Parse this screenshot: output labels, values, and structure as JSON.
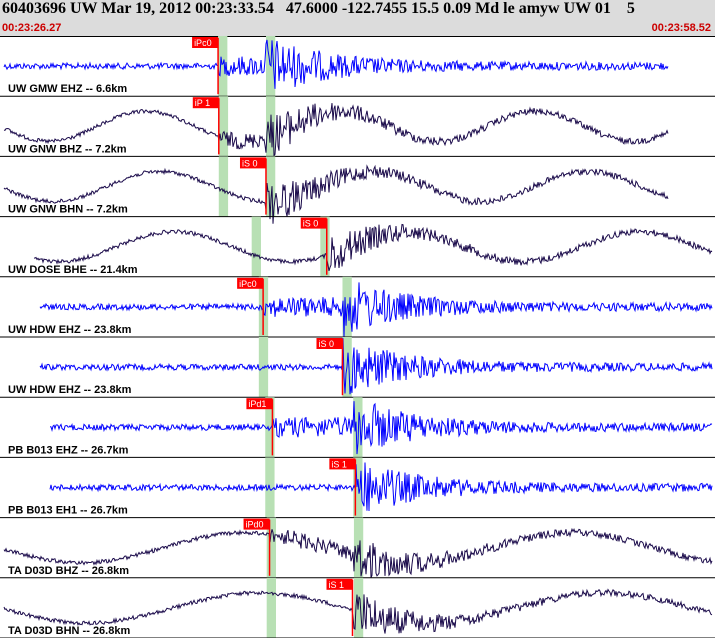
{
  "header": {
    "event_line": "60403696 UW Mar 19, 2012 00:23:33.54   47.6000 -122.7455 15.5 0.09 Md le amyw UW 01    5",
    "start_time": "00:23:26.27",
    "end_time": "00:23:58.52"
  },
  "colors": {
    "header_bg": "#dcdcdc",
    "trace_vertical": "#0000ff",
    "trace_horizontal": "#1a0a4a",
    "pick_flag": "#ff0000",
    "time_window": "#b8e0b4"
  },
  "chart_data": {
    "type": "line",
    "x_range": [
      "00:23:26.27",
      "00:23:58.52"
    ],
    "grid": false,
    "channels": [
      {
        "label": "UW GMW EHZ -- 6.6km",
        "color": "blue",
        "picks": [
          {
            "label": "iPc0",
            "t": 0.305
          }
        ],
        "window": [
          0.305,
          0.318
        ],
        "window2": [
          0.372,
          0.385
        ]
      },
      {
        "label": "UW GNW BHZ -- 7.2km",
        "color": "dark",
        "picks": [
          {
            "label": "iP 1",
            "t": 0.306
          }
        ],
        "window": [
          0.306,
          0.319
        ],
        "window2": [
          0.372,
          0.385
        ]
      },
      {
        "label": "UW GNW BHN -- 7.2km",
        "color": "dark",
        "picks": [
          {
            "label": "iS 0",
            "t": 0.372
          }
        ],
        "window": [
          0.306,
          0.319
        ],
        "window2": [
          0.372,
          0.385
        ]
      },
      {
        "label": "UW DOSE BHE -- 21.4km",
        "color": "dark",
        "picks": [
          {
            "label": "iS 0",
            "t": 0.457
          }
        ],
        "window": [
          0.352,
          0.365
        ],
        "window2": [
          0.448,
          0.461
        ]
      },
      {
        "label": "UW HDW EHZ -- 23.8km",
        "color": "blue",
        "picks": [
          {
            "label": "iPc0",
            "t": 0.368
          }
        ],
        "window": [
          0.362,
          0.375
        ],
        "window2": [
          0.479,
          0.492
        ]
      },
      {
        "label": "UW HDW EHZ -- 23.8km",
        "color": "blue",
        "picks": [
          {
            "label": "iS 0",
            "t": 0.479
          }
        ],
        "window": [
          0.362,
          0.375
        ],
        "window2": [
          0.479,
          0.492
        ]
      },
      {
        "label": "PB B013 EHZ -- 26.7km",
        "color": "blue",
        "picks": [
          {
            "label": "iPd1",
            "t": 0.381
          }
        ],
        "window": [
          0.371,
          0.384
        ],
        "window2": [
          0.494,
          0.507
        ]
      },
      {
        "label": "PB B013 EH1 -- 26.7km",
        "color": "blue",
        "picks": [
          {
            "label": "iS 1",
            "t": 0.497
          }
        ],
        "window": [
          0.371,
          0.384
        ],
        "window2": [
          0.494,
          0.507
        ]
      },
      {
        "label": "TA D03D BHZ -- 26.8km",
        "color": "dark",
        "picks": [
          {
            "label": "iPd0",
            "t": 0.377
          }
        ],
        "window": [
          0.373,
          0.386
        ],
        "window2": [
          0.495,
          0.508
        ]
      },
      {
        "label": "TA D03D BHN -- 26.8km",
        "color": "dark",
        "picks": [
          {
            "label": "iS 1",
            "t": 0.493
          }
        ],
        "window": [
          0.373,
          0.386
        ],
        "window2": [
          0.495,
          0.508
        ]
      }
    ]
  }
}
